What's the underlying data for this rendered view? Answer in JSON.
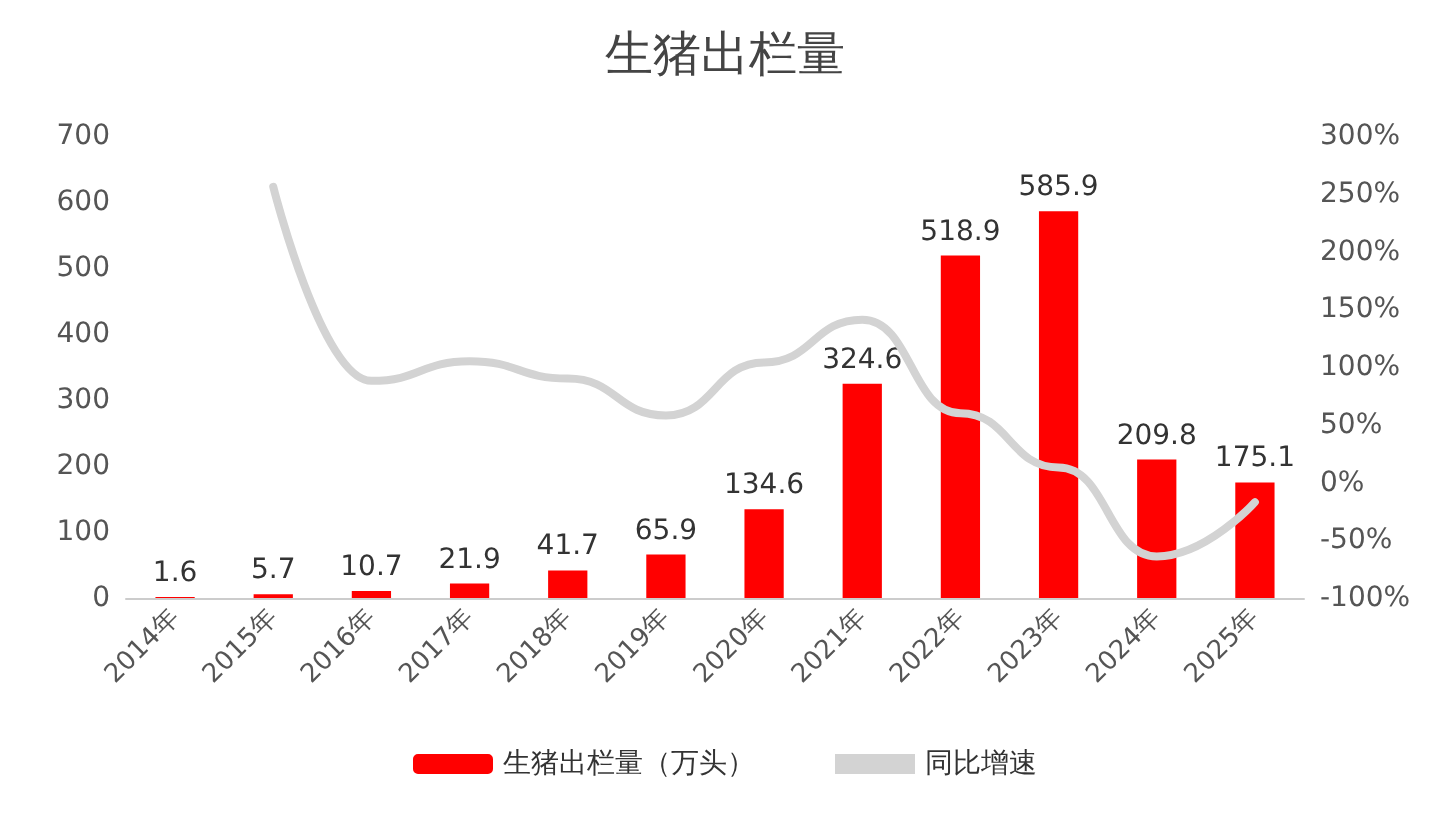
{
  "chart_data": {
    "type": "bar",
    "title": "生猪出栏量",
    "categories": [
      "2014年",
      "2015年",
      "2016年",
      "2017年",
      "2018年",
      "2019年",
      "2020年",
      "2021年",
      "2022年",
      "2023年",
      "2024年",
      "2025年"
    ],
    "series": [
      {
        "name": "生猪出栏量（万头）",
        "color": "#ff0000",
        "values": [
          1.6,
          5.7,
          10.7,
          21.9,
          41.7,
          65.9,
          134.6,
          324.6,
          518.9,
          585.9,
          209.8,
          175.1
        ],
        "value_labels": [
          "1.6",
          "5.7",
          "10.7",
          "21.9",
          "41.7",
          "65.9",
          "134.6",
          "324.6",
          "518.9",
          "585.9",
          "209.8",
          "175.1"
        ]
      },
      {
        "name": "同比增速",
        "type": "line",
        "axis": "y2",
        "color": "#d3d3d3",
        "marker": "none",
        "values": [
          null,
          256,
          88,
          105,
          90,
          58,
          104,
          141,
          60,
          13,
          -64,
          -17
        ]
      }
    ],
    "ylim": [
      0,
      700
    ],
    "yticks": [
      0,
      100,
      200,
      300,
      400,
      500,
      600,
      700
    ],
    "y2lim": [
      -100,
      300
    ],
    "y2ticks": [
      {
        "value": -100,
        "label": "-100%"
      },
      {
        "value": -50,
        "label": "-50%"
      },
      {
        "value": 0,
        "label": "0%"
      },
      {
        "value": 50,
        "label": "50%"
      },
      {
        "value": 100,
        "label": "100%"
      },
      {
        "value": 150,
        "label": "150%"
      },
      {
        "value": 200,
        "label": "200%"
      },
      {
        "value": 250,
        "label": "250%"
      },
      {
        "value": 300,
        "label": "300%"
      }
    ],
    "grid": false,
    "legend": "bottom"
  }
}
